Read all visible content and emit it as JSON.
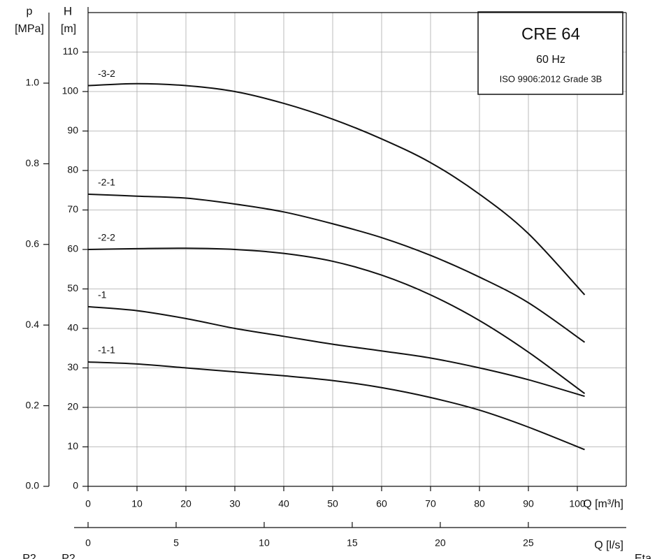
{
  "chart_data": {
    "type": "line",
    "title": "CRE 64",
    "subtitle": "60 Hz",
    "annotation": "ISO 9906:2012 Grade 3B",
    "y_label_top": "H",
    "y_label_unit": "[m]",
    "y2_label_top": "p",
    "y2_label_unit": "[MPa]",
    "x_label": "Q [m³/h]",
    "x2_label": "Q [l/s]",
    "footer_labels": [
      "P2",
      "P2",
      "Eta"
    ],
    "x": [
      0,
      10,
      20,
      30,
      40,
      50,
      60,
      70,
      80,
      90,
      101.5
    ],
    "series": [
      {
        "name": "-3-2",
        "color": "#111111",
        "values": [
          101.5,
          102,
          101.5,
          100,
          97,
          93,
          88,
          82,
          74,
          64,
          48.5
        ]
      },
      {
        "name": "-2-1",
        "color": "#111111",
        "values": [
          74,
          73.5,
          73,
          71.5,
          69.5,
          66.5,
          63,
          58.5,
          53,
          46.5,
          36.5
        ]
      },
      {
        "name": "-2-2",
        "color": "#111111",
        "values": [
          60,
          60.2,
          60.3,
          60,
          59,
          57,
          53.5,
          48.5,
          42,
          34,
          23.5
        ]
      },
      {
        "name": "-1",
        "color": "#111111",
        "values": [
          45.5,
          44.5,
          42.5,
          40,
          38,
          36,
          34.3,
          32.5,
          30,
          27,
          22.8
        ]
      },
      {
        "name": "-1-1",
        "color": "#111111",
        "values": [
          31.5,
          31,
          30,
          29,
          28,
          26.8,
          25,
          22.5,
          19.3,
          15,
          9.3
        ]
      }
    ],
    "xlim": [
      0,
      110
    ],
    "xticks": [
      0,
      10,
      20,
      30,
      40,
      50,
      60,
      70,
      80,
      90,
      100
    ],
    "ylim": [
      0,
      120
    ],
    "yticks": [
      0,
      10,
      20,
      30,
      40,
      50,
      60,
      70,
      80,
      90,
      100,
      110
    ],
    "y2lim": [
      0,
      1.175
    ],
    "y2ticks": [
      {
        "value": 0,
        "label": "0.0"
      },
      0.2,
      0.4,
      0.6,
      0.8,
      {
        "value": 1,
        "label": "1.0"
      }
    ],
    "x2lim": [
      0,
      30.56
    ],
    "x2ticks": [
      0,
      5,
      10,
      15,
      20,
      25
    ],
    "grid": true
  }
}
